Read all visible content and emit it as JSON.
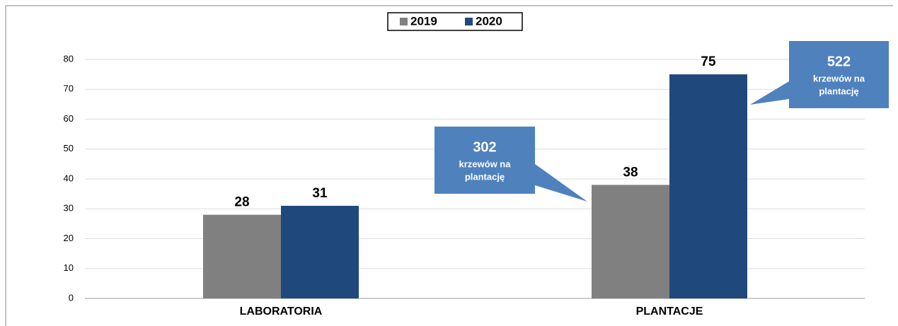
{
  "chart_data": {
    "type": "bar",
    "categories": [
      "LABORATORIA",
      "PLANTACJE"
    ],
    "series": [
      {
        "name": "2019",
        "color": "#808080",
        "values": [
          28,
          38
        ]
      },
      {
        "name": "2020",
        "color": "#1f497d",
        "values": [
          31,
          75
        ]
      }
    ],
    "ylim": [
      0,
      80
    ],
    "yticks": [
      0,
      10,
      20,
      30,
      40,
      50,
      60,
      70,
      80
    ],
    "grid": true,
    "legend": "top",
    "annotations": [
      {
        "value": 302,
        "lines": [
          "krzewów na",
          "plantację"
        ],
        "color": "#4f81bd"
      },
      {
        "value": 522,
        "lines": [
          "krzewów na",
          "plantację"
        ],
        "color": "#4f81bd"
      }
    ]
  }
}
